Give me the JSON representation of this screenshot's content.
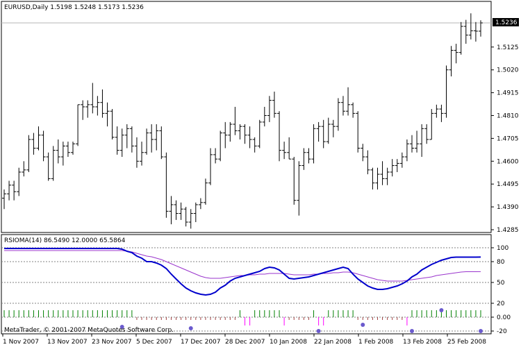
{
  "colors": {
    "background": "#ffffff",
    "frame": "#000000",
    "bars": "#000000",
    "price_line": "#b4b4b4",
    "rsioma_line": "#0000cc",
    "signal_line": "#9933cc",
    "dashed_level": "#808080",
    "hist_green": "#008000",
    "hist_magenta": "#ff00ff",
    "hist_brown": "#a04040",
    "dot_blue": "#6a5acd"
  },
  "main_panel": {
    "title": "EURUSD,Daily  1.5198 1.5248 1.5173 1.5236",
    "current_price": "1.5236",
    "price_axis": [
      "1.5125",
      "1.5020",
      "1.4915",
      "1.4810",
      "1.4705",
      "1.4600",
      "1.4495",
      "1.4390",
      "1.4285"
    ]
  },
  "indicator_panel": {
    "title": "RSIOMA(14) 86.5490 12.0000 65.5864",
    "levels": [
      "100",
      "80",
      "50",
      "20",
      "0.00",
      "-20"
    ],
    "copyright": "MetaTrader, © 2001-2007 MetaQuotes Software Corp."
  },
  "time_axis": [
    "1 Nov 2007",
    "13 Nov 2007",
    "23 Nov 2007",
    "5 Dec 2007",
    "17 Dec 2007",
    "28 Dec 2007",
    "10 Jan 2008",
    "22 Jan 2008",
    "1 Feb 2008",
    "13 Feb 2008",
    "25 Feb 2008"
  ],
  "chart_data": {
    "type": "ohlc",
    "symbol": "EURUSD",
    "timeframe": "Daily",
    "ylim": [
      1.4285,
      1.5236
    ],
    "bars": [
      {
        "o": 1.443,
        "h": 1.447,
        "l": 1.438,
        "c": 1.445
      },
      {
        "o": 1.445,
        "h": 1.451,
        "l": 1.442,
        "c": 1.449
      },
      {
        "o": 1.449,
        "h": 1.451,
        "l": 1.442,
        "c": 1.446
      },
      {
        "o": 1.446,
        "h": 1.457,
        "l": 1.444,
        "c": 1.455
      },
      {
        "o": 1.455,
        "h": 1.46,
        "l": 1.453,
        "c": 1.456
      },
      {
        "o": 1.456,
        "h": 1.472,
        "l": 1.455,
        "c": 1.47
      },
      {
        "o": 1.47,
        "h": 1.473,
        "l": 1.463,
        "c": 1.466
      },
      {
        "o": 1.466,
        "h": 1.476,
        "l": 1.465,
        "c": 1.472
      },
      {
        "o": 1.472,
        "h": 1.474,
        "l": 1.46,
        "c": 1.462
      },
      {
        "o": 1.462,
        "h": 1.464,
        "l": 1.451,
        "c": 1.452
      },
      {
        "o": 1.452,
        "h": 1.467,
        "l": 1.451,
        "c": 1.465
      },
      {
        "o": 1.465,
        "h": 1.47,
        "l": 1.459,
        "c": 1.462
      },
      {
        "o": 1.462,
        "h": 1.469,
        "l": 1.458,
        "c": 1.467
      },
      {
        "o": 1.467,
        "h": 1.469,
        "l": 1.462,
        "c": 1.464
      },
      {
        "o": 1.464,
        "h": 1.469,
        "l": 1.463,
        "c": 1.468
      },
      {
        "o": 1.468,
        "h": 1.486,
        "l": 1.467,
        "c": 1.486
      },
      {
        "o": 1.486,
        "h": 1.488,
        "l": 1.479,
        "c": 1.485
      },
      {
        "o": 1.485,
        "h": 1.488,
        "l": 1.48,
        "c": 1.486
      },
      {
        "o": 1.486,
        "h": 1.496,
        "l": 1.482,
        "c": 1.485
      },
      {
        "o": 1.485,
        "h": 1.49,
        "l": 1.481,
        "c": 1.487
      },
      {
        "o": 1.487,
        "h": 1.493,
        "l": 1.48,
        "c": 1.482
      },
      {
        "o": 1.482,
        "h": 1.487,
        "l": 1.476,
        "c": 1.483
      },
      {
        "o": 1.483,
        "h": 1.484,
        "l": 1.47,
        "c": 1.471
      },
      {
        "o": 1.471,
        "h": 1.476,
        "l": 1.463,
        "c": 1.465
      },
      {
        "o": 1.465,
        "h": 1.475,
        "l": 1.462,
        "c": 1.472
      },
      {
        "o": 1.472,
        "h": 1.477,
        "l": 1.466,
        "c": 1.475
      },
      {
        "o": 1.475,
        "h": 1.476,
        "l": 1.464,
        "c": 1.467
      },
      {
        "o": 1.467,
        "h": 1.471,
        "l": 1.457,
        "c": 1.46
      },
      {
        "o": 1.46,
        "h": 1.469,
        "l": 1.458,
        "c": 1.464
      },
      {
        "o": 1.464,
        "h": 1.475,
        "l": 1.463,
        "c": 1.473
      },
      {
        "o": 1.473,
        "h": 1.477,
        "l": 1.464,
        "c": 1.47
      },
      {
        "o": 1.47,
        "h": 1.477,
        "l": 1.465,
        "c": 1.474
      },
      {
        "o": 1.474,
        "h": 1.476,
        "l": 1.461,
        "c": 1.462
      },
      {
        "o": 1.462,
        "h": 1.464,
        "l": 1.434,
        "c": 1.437
      },
      {
        "o": 1.437,
        "h": 1.444,
        "l": 1.431,
        "c": 1.44
      },
      {
        "o": 1.44,
        "h": 1.442,
        "l": 1.433,
        "c": 1.436
      },
      {
        "o": 1.436,
        "h": 1.441,
        "l": 1.433,
        "c": 1.438
      },
      {
        "o": 1.438,
        "h": 1.439,
        "l": 1.43,
        "c": 1.432
      },
      {
        "o": 1.432,
        "h": 1.438,
        "l": 1.429,
        "c": 1.436
      },
      {
        "o": 1.436,
        "h": 1.441,
        "l": 1.432,
        "c": 1.44
      },
      {
        "o": 1.44,
        "h": 1.443,
        "l": 1.438,
        "c": 1.441
      },
      {
        "o": 1.441,
        "h": 1.452,
        "l": 1.44,
        "c": 1.45
      },
      {
        "o": 1.45,
        "h": 1.466,
        "l": 1.449,
        "c": 1.463
      },
      {
        "o": 1.463,
        "h": 1.466,
        "l": 1.459,
        "c": 1.461
      },
      {
        "o": 1.461,
        "h": 1.474,
        "l": 1.46,
        "c": 1.473
      },
      {
        "o": 1.473,
        "h": 1.478,
        "l": 1.466,
        "c": 1.472
      },
      {
        "o": 1.472,
        "h": 1.478,
        "l": 1.469,
        "c": 1.477
      },
      {
        "o": 1.477,
        "h": 1.485,
        "l": 1.472,
        "c": 1.474
      },
      {
        "o": 1.474,
        "h": 1.477,
        "l": 1.47,
        "c": 1.476
      },
      {
        "o": 1.476,
        "h": 1.477,
        "l": 1.468,
        "c": 1.472
      },
      {
        "o": 1.472,
        "h": 1.476,
        "l": 1.466,
        "c": 1.47
      },
      {
        "o": 1.47,
        "h": 1.471,
        "l": 1.464,
        "c": 1.467
      },
      {
        "o": 1.467,
        "h": 1.479,
        "l": 1.466,
        "c": 1.478
      },
      {
        "o": 1.478,
        "h": 1.485,
        "l": 1.476,
        "c": 1.481
      },
      {
        "o": 1.481,
        "h": 1.49,
        "l": 1.478,
        "c": 1.488
      },
      {
        "o": 1.488,
        "h": 1.492,
        "l": 1.48,
        "c": 1.482
      },
      {
        "o": 1.482,
        "h": 1.483,
        "l": 1.46,
        "c": 1.465
      },
      {
        "o": 1.465,
        "h": 1.469,
        "l": 1.461,
        "c": 1.464
      },
      {
        "o": 1.464,
        "h": 1.471,
        "l": 1.461,
        "c": 1.461
      },
      {
        "o": 1.461,
        "h": 1.462,
        "l": 1.44,
        "c": 1.442
      },
      {
        "o": 1.442,
        "h": 1.46,
        "l": 1.435,
        "c": 1.458
      },
      {
        "o": 1.458,
        "h": 1.466,
        "l": 1.456,
        "c": 1.464
      },
      {
        "o": 1.464,
        "h": 1.466,
        "l": 1.459,
        "c": 1.461
      },
      {
        "o": 1.461,
        "h": 1.477,
        "l": 1.459,
        "c": 1.475
      },
      {
        "o": 1.475,
        "h": 1.478,
        "l": 1.469,
        "c": 1.476
      },
      {
        "o": 1.476,
        "h": 1.479,
        "l": 1.466,
        "c": 1.469
      },
      {
        "o": 1.469,
        "h": 1.48,
        "l": 1.468,
        "c": 1.477
      },
      {
        "o": 1.477,
        "h": 1.479,
        "l": 1.471,
        "c": 1.476
      },
      {
        "o": 1.476,
        "h": 1.489,
        "l": 1.474,
        "c": 1.487
      },
      {
        "o": 1.487,
        "h": 1.49,
        "l": 1.481,
        "c": 1.483
      },
      {
        "o": 1.483,
        "h": 1.494,
        "l": 1.481,
        "c": 1.486
      },
      {
        "o": 1.486,
        "h": 1.487,
        "l": 1.48,
        "c": 1.482
      },
      {
        "o": 1.482,
        "h": 1.483,
        "l": 1.464,
        "c": 1.466
      },
      {
        "o": 1.466,
        "h": 1.468,
        "l": 1.46,
        "c": 1.462
      },
      {
        "o": 1.462,
        "h": 1.465,
        "l": 1.454,
        "c": 1.456
      },
      {
        "o": 1.456,
        "h": 1.457,
        "l": 1.447,
        "c": 1.45
      },
      {
        "o": 1.45,
        "h": 1.457,
        "l": 1.447,
        "c": 1.454
      },
      {
        "o": 1.454,
        "h": 1.46,
        "l": 1.449,
        "c": 1.452
      },
      {
        "o": 1.452,
        "h": 1.457,
        "l": 1.449,
        "c": 1.455
      },
      {
        "o": 1.455,
        "h": 1.461,
        "l": 1.453,
        "c": 1.458
      },
      {
        "o": 1.458,
        "h": 1.461,
        "l": 1.455,
        "c": 1.459
      },
      {
        "o": 1.459,
        "h": 1.464,
        "l": 1.457,
        "c": 1.462
      },
      {
        "o": 1.462,
        "h": 1.47,
        "l": 1.46,
        "c": 1.468
      },
      {
        "o": 1.468,
        "h": 1.472,
        "l": 1.464,
        "c": 1.466
      },
      {
        "o": 1.466,
        "h": 1.474,
        "l": 1.464,
        "c": 1.468
      },
      {
        "o": 1.468,
        "h": 1.477,
        "l": 1.462,
        "c": 1.475
      },
      {
        "o": 1.475,
        "h": 1.477,
        "l": 1.468,
        "c": 1.47
      },
      {
        "o": 1.47,
        "h": 1.484,
        "l": 1.47,
        "c": 1.482
      },
      {
        "o": 1.482,
        "h": 1.486,
        "l": 1.48,
        "c": 1.484
      },
      {
        "o": 1.484,
        "h": 1.486,
        "l": 1.478,
        "c": 1.482
      },
      {
        "o": 1.482,
        "h": 1.504,
        "l": 1.48,
        "c": 1.502
      },
      {
        "o": 1.502,
        "h": 1.513,
        "l": 1.499,
        "c": 1.511
      },
      {
        "o": 1.511,
        "h": 1.514,
        "l": 1.505,
        "c": 1.51
      },
      {
        "o": 1.51,
        "h": 1.524,
        "l": 1.509,
        "c": 1.522
      },
      {
        "o": 1.522,
        "h": 1.525,
        "l": 1.514,
        "c": 1.518
      },
      {
        "o": 1.518,
        "h": 1.528,
        "l": 1.516,
        "c": 1.52
      },
      {
        "o": 1.52,
        "h": 1.524,
        "l": 1.515,
        "c": 1.5198
      },
      {
        "o": 1.5198,
        "h": 1.5248,
        "l": 1.5173,
        "c": 1.5236
      }
    ],
    "rsioma_ylim": [
      -20,
      100
    ],
    "rsioma": [
      99,
      99,
      99,
      99,
      99,
      99,
      99,
      99,
      99,
      99,
      99,
      99,
      99,
      99,
      99,
      99,
      99,
      99,
      99,
      99,
      99,
      99,
      99,
      99,
      98,
      95,
      93,
      88,
      85,
      80,
      80,
      78,
      75,
      70,
      62,
      55,
      48,
      42,
      38,
      35,
      33,
      32,
      33,
      36,
      42,
      46,
      52,
      56,
      58,
      60,
      62,
      64,
      66,
      70,
      72,
      71,
      68,
      62,
      56,
      55,
      56,
      57,
      58,
      60,
      62,
      64,
      66,
      68,
      70,
      72,
      70,
      62,
      55,
      50,
      45,
      42,
      40,
      40,
      41,
      43,
      45,
      48,
      52,
      58,
      62,
      68,
      72,
      76,
      79,
      82,
      84,
      86,
      86.5,
      86.5,
      86.5,
      86.5,
      86.5,
      86.55
    ],
    "signal": [
      96,
      96,
      96,
      96,
      96,
      96,
      96,
      96,
      96,
      96,
      96,
      96,
      96,
      96,
      96,
      96,
      96,
      96,
      96,
      96,
      96,
      96,
      96,
      96,
      96,
      95,
      94,
      92,
      90,
      88,
      87,
      85,
      83,
      80,
      77,
      74,
      71,
      68,
      65,
      62,
      59,
      57,
      56,
      56,
      56,
      57,
      58,
      59,
      60,
      60,
      61,
      61,
      62,
      62,
      63,
      63,
      63,
      63,
      62,
      61,
      61,
      61,
      61,
      62,
      62,
      63,
      63,
      64,
      64,
      65,
      65,
      64,
      62,
      60,
      58,
      56,
      54,
      53,
      52,
      52,
      52,
      52,
      53,
      54,
      55,
      56,
      57,
      58,
      60,
      61,
      62,
      63,
      64,
      65,
      65.5,
      65.5,
      65.5,
      65.59
    ]
  }
}
